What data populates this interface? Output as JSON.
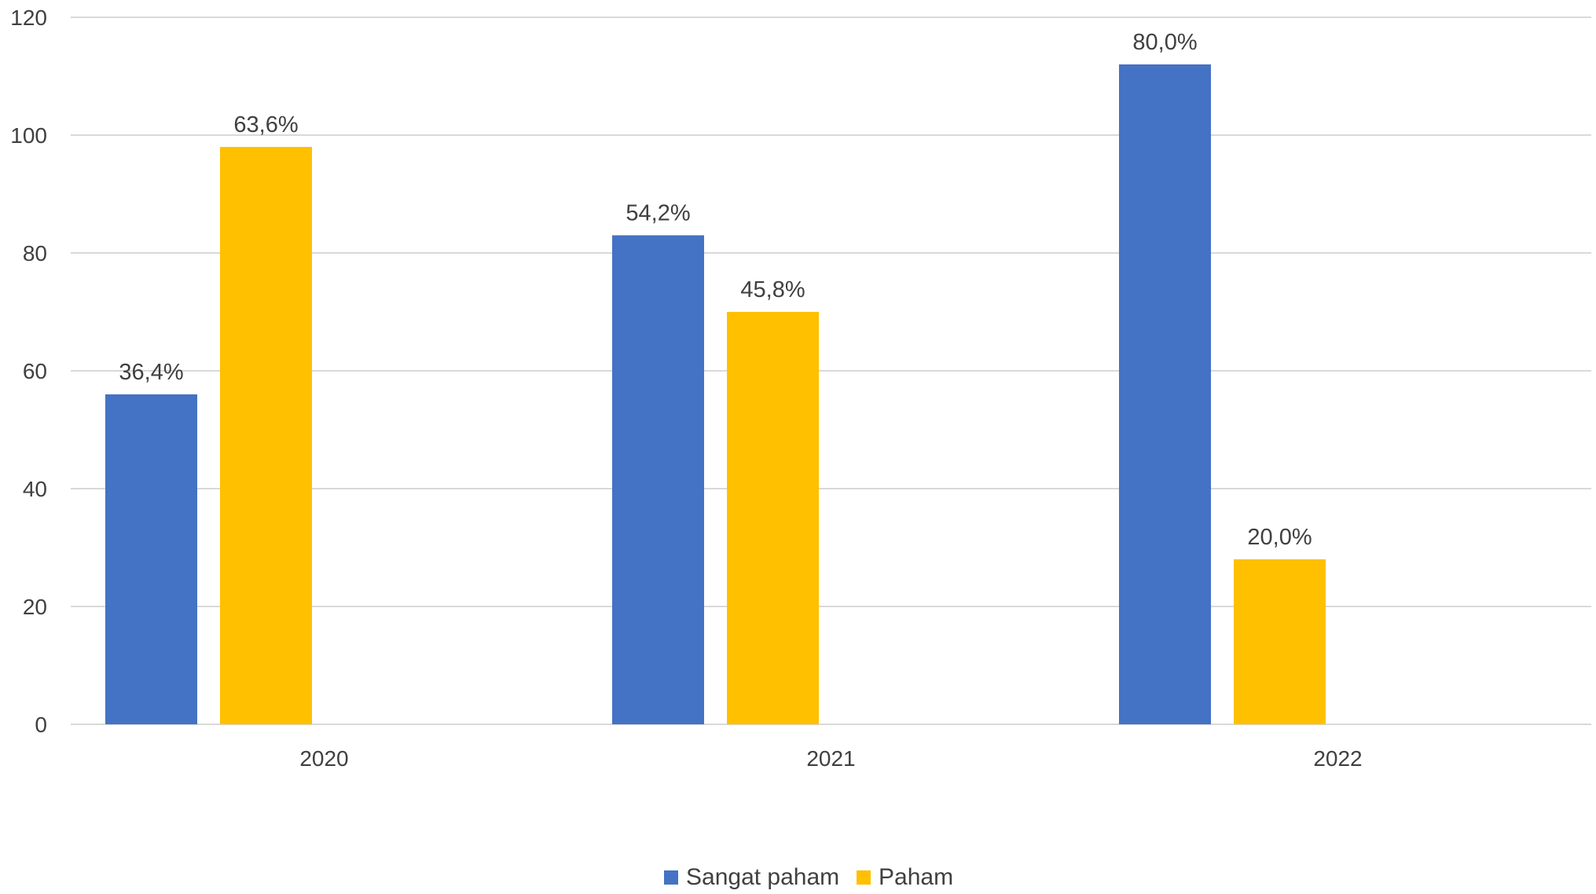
{
  "chart_data": {
    "type": "bar",
    "categories": [
      "2020",
      "2021",
      "2022"
    ],
    "series": [
      {
        "name": "Sangat paham",
        "color": "#4472C4",
        "values": [
          56,
          83,
          112
        ],
        "labels": [
          "36,4%",
          "54,2%",
          "80,0%"
        ]
      },
      {
        "name": "Paham",
        "color": "#FFC000",
        "values": [
          98,
          70,
          28
        ],
        "labels": [
          "63,6%",
          "45,8%",
          "20,0%"
        ]
      }
    ],
    "y_ticks": [
      "0",
      "20",
      "40",
      "60",
      "80",
      "100",
      "120"
    ],
    "ylim": [
      0,
      120
    ],
    "grid": true,
    "legend_position": "bottom"
  }
}
